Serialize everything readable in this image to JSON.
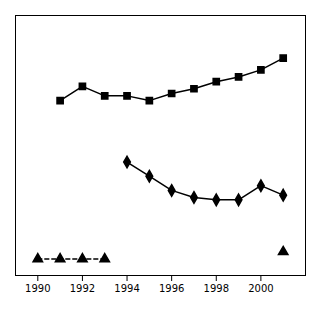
{
  "chart_data": {
    "type": "line",
    "x": [
      1990,
      1991,
      1992,
      1993,
      1994,
      1995,
      1996,
      1997,
      1998,
      1999,
      2000,
      2001
    ],
    "series": [
      {
        "color": "#000000",
        "marker": "square",
        "line_style": "solid",
        "values": [
          null,
          74,
          80,
          76,
          76,
          74,
          77,
          79,
          82,
          84,
          87,
          92
        ]
      },
      {
        "color": "#000000",
        "marker": "diamond",
        "line_style": "solid",
        "values": [
          null,
          null,
          null,
          null,
          48,
          42,
          36,
          33,
          32,
          32,
          38,
          34
        ]
      },
      {
        "color": "#000000",
        "marker": "triangle",
        "line_style": "dashed",
        "values": [
          7,
          7,
          7,
          7,
          null,
          null,
          null,
          null,
          null,
          null,
          null,
          null
        ]
      },
      {
        "color": "#000000",
        "marker": "triangle",
        "line_style": "none",
        "values": [
          null,
          null,
          null,
          null,
          null,
          null,
          null,
          null,
          null,
          null,
          null,
          10
        ]
      }
    ],
    "xlim": [
      1989.0,
      2002.0
    ],
    "xticks": [
      1990,
      1992,
      1994,
      1996,
      1998,
      2000
    ],
    "ylim": [
      0,
      110
    ],
    "grid": false,
    "tick_labels": "x"
  }
}
